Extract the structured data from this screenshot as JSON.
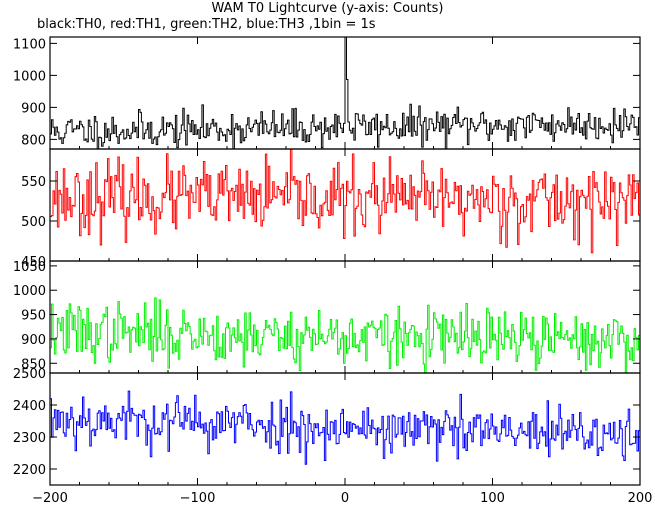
{
  "title": "WAM T0 Lightcurve (y-axis: Counts)",
  "subtitle": "black:TH0, red:TH1, green:TH2, blue:TH3 ,1bin = 1s",
  "chart_data": {
    "type": "line",
    "x_range": [
      -200,
      200
    ],
    "x_ticks": [
      -200,
      -100,
      0,
      100,
      200
    ],
    "x_tick_labels": [
      "−200",
      "−100",
      "0",
      "100",
      "200"
    ],
    "grid": false,
    "bin_seconds": 1,
    "panels": [
      {
        "name": "TH0",
        "color": "#000000",
        "ylim": [
          770,
          1120
        ],
        "y_ticks": [
          800,
          900,
          1000,
          1100
        ],
        "baseline": 825,
        "baseline_end": 850,
        "noise": 28,
        "peak": {
          "x": 0,
          "value": 1120
        },
        "seed": 11
      },
      {
        "name": "TH1",
        "color": "#ff0000",
        "ylim": [
          450,
          590
        ],
        "y_ticks": [
          450,
          500,
          550
        ],
        "baseline": 530,
        "baseline_end": 525,
        "noise": 22,
        "seed": 23
      },
      {
        "name": "TH2",
        "color": "#00ee00",
        "ylim": [
          830,
          1060
        ],
        "y_ticks": [
          850,
          900,
          950,
          1000,
          1050
        ],
        "baseline": 915,
        "baseline_end": 895,
        "noise": 30,
        "seed": 37
      },
      {
        "name": "TH3",
        "color": "#0000ff",
        "ylim": [
          2150,
          2500
        ],
        "y_ticks": [
          2200,
          2300,
          2400,
          2500
        ],
        "baseline": 2360,
        "baseline_end": 2300,
        "noise": 42,
        "seed": 53
      }
    ]
  }
}
